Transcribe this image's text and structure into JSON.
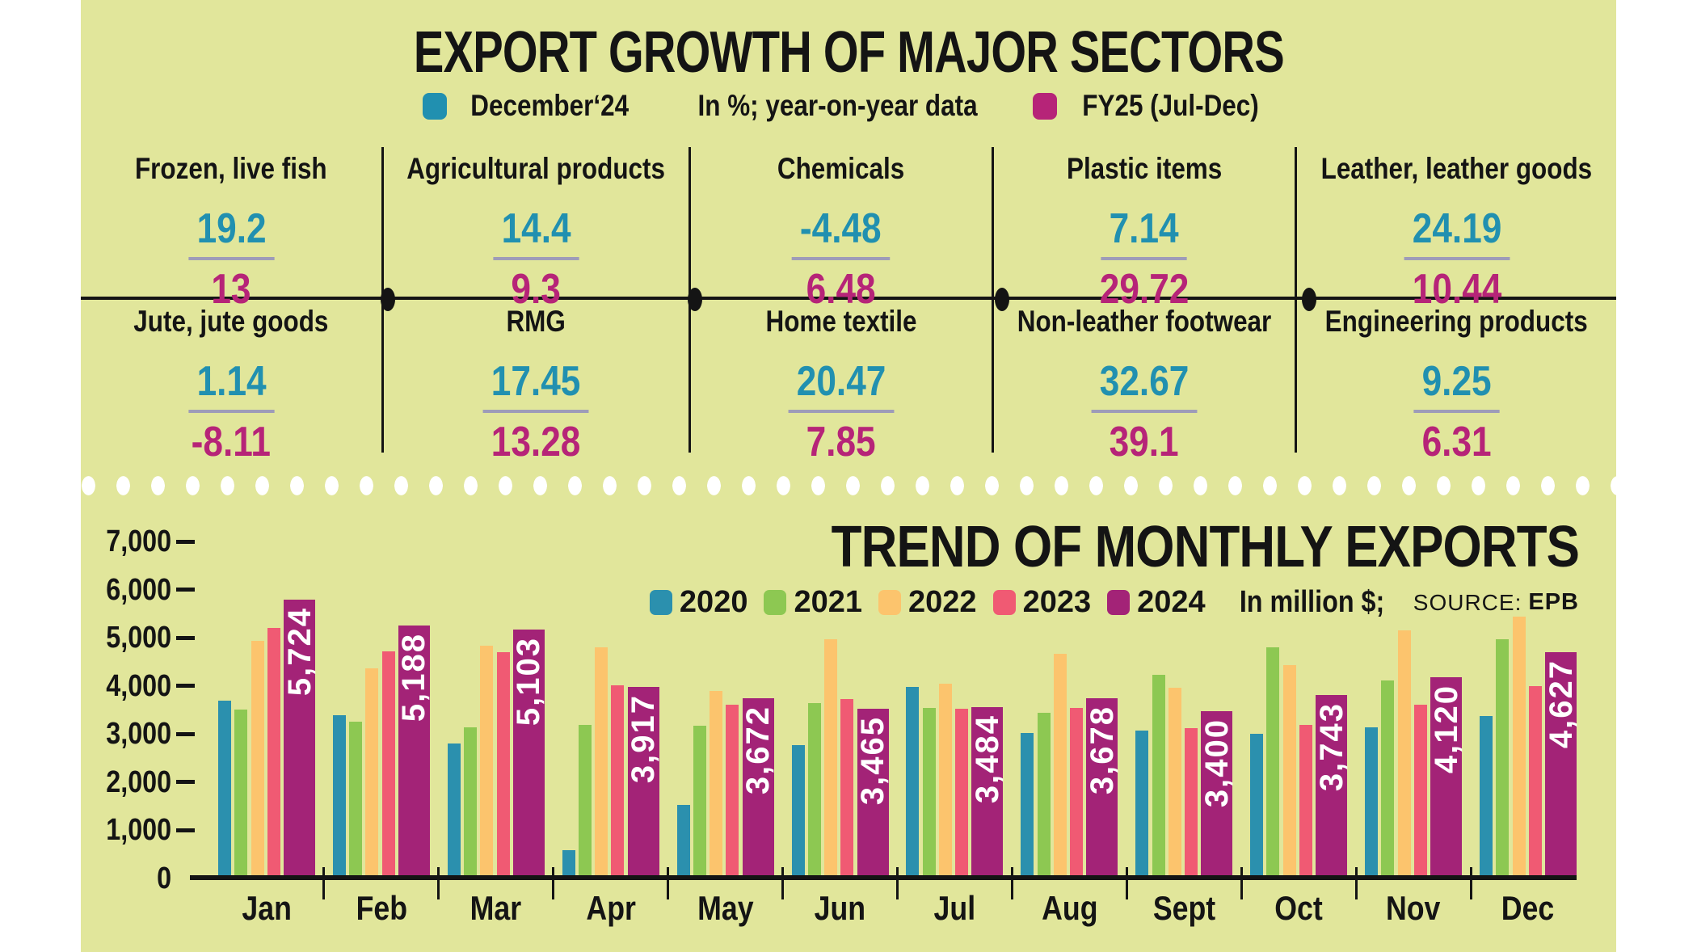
{
  "header": {
    "title": "EXPORT GROWTH OF MAJOR SECTORS",
    "legend": {
      "dec24_label": "December‘24",
      "note": "In %; year-on-year data",
      "fy25_label": "FY25 (Jul-Dec)"
    }
  },
  "sectors": [
    {
      "name": "Frozen, live fish",
      "dec24": "19.2",
      "fy25": "13"
    },
    {
      "name": "Agricultural products",
      "dec24": "14.4",
      "fy25": "9.3"
    },
    {
      "name": "Chemicals",
      "dec24": "-4.48",
      "fy25": "6.48"
    },
    {
      "name": "Plastic items",
      "dec24": "7.14",
      "fy25": "29.72"
    },
    {
      "name": "Leather, leather goods",
      "dec24": "24.19",
      "fy25": "10.44"
    },
    {
      "name": "Jute, jute goods",
      "dec24": "1.14",
      "fy25": "-8.11"
    },
    {
      "name": "RMG",
      "dec24": "17.45",
      "fy25": "13.28"
    },
    {
      "name": "Home textile",
      "dec24": "20.47",
      "fy25": "7.85"
    },
    {
      "name": "Non-leather footwear",
      "dec24": "32.67",
      "fy25": "39.1"
    },
    {
      "name": "Engineering products",
      "dec24": "9.25",
      "fy25": "6.31"
    }
  ],
  "chart": {
    "title": "TREND OF MONTHLY EXPORTS",
    "unit_note": "In million $;",
    "source_label": "SOURCE:",
    "source": "EPB",
    "y_ticks": [
      "7,000",
      "6,000",
      "5,000",
      "4,000",
      "3,000",
      "2,000",
      "1,000",
      "0"
    ]
  },
  "chart_data": {
    "type": "bar",
    "title": "TREND OF MONTHLY EXPORTS",
    "unit": "In million $",
    "source": "EPB",
    "categories": [
      "Jan",
      "Feb",
      "Mar",
      "Apr",
      "May",
      "Jun",
      "Jul",
      "Aug",
      "Sept",
      "Oct",
      "Nov",
      "Dec"
    ],
    "ylim": [
      0,
      7000
    ],
    "y_tick_step": 1000,
    "grid": false,
    "legend_position": "top-right",
    "series": [
      {
        "name": "2020",
        "color": "#2b90ae",
        "values": [
          3620,
          3320,
          2730,
          520,
          1460,
          2710,
          3910,
          2960,
          3010,
          2940,
          3080,
          3310
        ]
      },
      {
        "name": "2021",
        "color": "#8dc852",
        "values": [
          3440,
          3190,
          3070,
          3130,
          3100,
          3580,
          3470,
          3370,
          4160,
          4730,
          4040,
          4910
        ]
      },
      {
        "name": "2022",
        "color": "#fcc46d",
        "values": [
          4860,
          4300,
          4760,
          4740,
          3830,
          4900,
          3980,
          4600,
          3900,
          4360,
          5090,
          5370
        ]
      },
      {
        "name": "2023",
        "color": "#f05a73",
        "values": [
          5140,
          4650,
          4640,
          3950,
          3540,
          3660,
          3450,
          3480,
          3060,
          3120,
          3550,
          3920
        ]
      },
      {
        "name": "2024",
        "color": "#a32377",
        "values": [
          5724,
          5188,
          5103,
          3917,
          3672,
          3465,
          3484,
          3678,
          3400,
          3743,
          4120,
          4627
        ],
        "labels": [
          "5,724",
          "5,188",
          "5,103",
          "3,917",
          "3,672",
          "3,465",
          "3,484",
          "3,678",
          "3,400",
          "3,743",
          "4,120",
          "4,627"
        ]
      }
    ]
  },
  "colors": {
    "background": "#e1e69b",
    "ink": "#141414",
    "blue": "#2190b0",
    "magenta": "#b62478",
    "underline": "#9e9cb8",
    "bar_2024_label": "#ffffff"
  }
}
